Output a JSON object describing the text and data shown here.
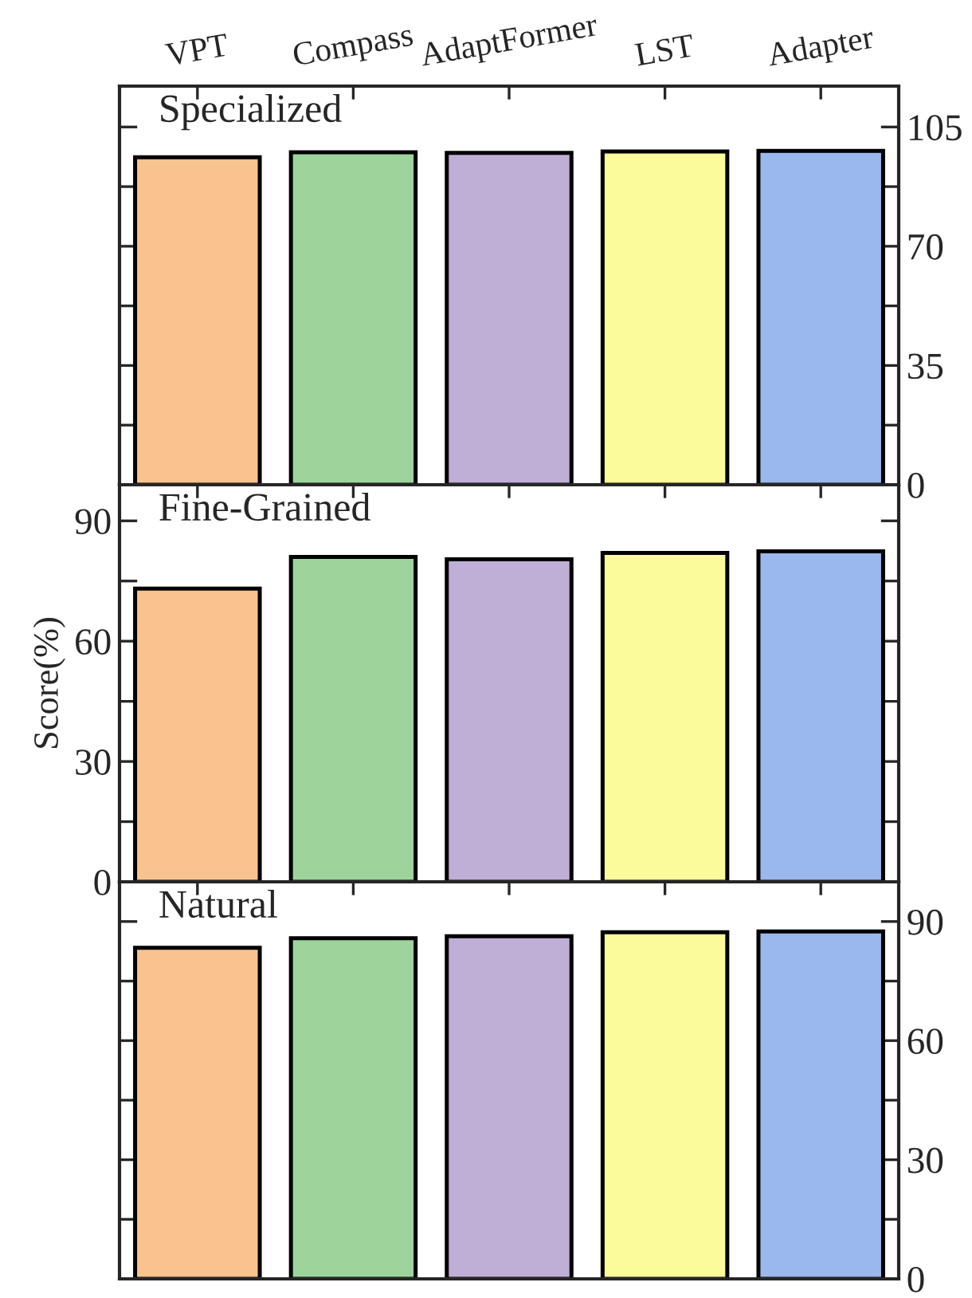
{
  "chart_data": [
    {
      "type": "bar",
      "title": "Specialized",
      "categories": [
        "VPT",
        "Compass",
        "AdaptFormer",
        "LST",
        "Adapter"
      ],
      "values": [
        96.1,
        97.6,
        97.4,
        97.8,
        98.0
      ],
      "colors": [
        "#f9c38f",
        "#9dd49b",
        "#bfafd6",
        "#fbfb9c",
        "#9ab8ec"
      ],
      "ylim": [
        0,
        117
      ],
      "yticks": [
        0,
        {
          "value": 17.5,
          "label": null
        },
        35,
        {
          "value": 52.5,
          "label": null
        },
        70,
        {
          "value": 87.5,
          "label": null
        },
        105
      ],
      "grid": false
    },
    {
      "type": "bar",
      "title": "Fine-Grained",
      "ylabel": "Score(%)",
      "categories": [
        null,
        null,
        null,
        null,
        null
      ],
      "values": [
        73.1,
        81.0,
        80.4,
        82.0,
        82.4
      ],
      "colors": [
        "#f9c38f",
        "#9dd49b",
        "#bfafd6",
        "#fbfb9c",
        "#9ab8ec"
      ],
      "ylim": [
        0,
        99
      ],
      "yticks": [
        0,
        {
          "value": 15,
          "label": null
        },
        30,
        {
          "value": 45,
          "label": null
        },
        60,
        {
          "value": 75,
          "label": null
        },
        90
      ],
      "tick_labels": "y",
      "grid": false
    },
    {
      "type": "bar",
      "title": "Natural",
      "categories": [
        null,
        null,
        null,
        null,
        null
      ],
      "values": [
        83.4,
        85.8,
        86.3,
        87.3,
        87.5
      ],
      "colors": [
        "#f9c38f",
        "#9dd49b",
        "#bfafd6",
        "#fbfb9c",
        "#9ab8ec"
      ],
      "ylim": [
        0,
        100
      ],
      "yticks": [
        0,
        {
          "value": 15,
          "label": null
        },
        30,
        {
          "value": 45,
          "label": null
        },
        60,
        {
          "value": 75,
          "label": null
        },
        90
      ],
      "tick_labels": "y",
      "grid": false
    }
  ]
}
